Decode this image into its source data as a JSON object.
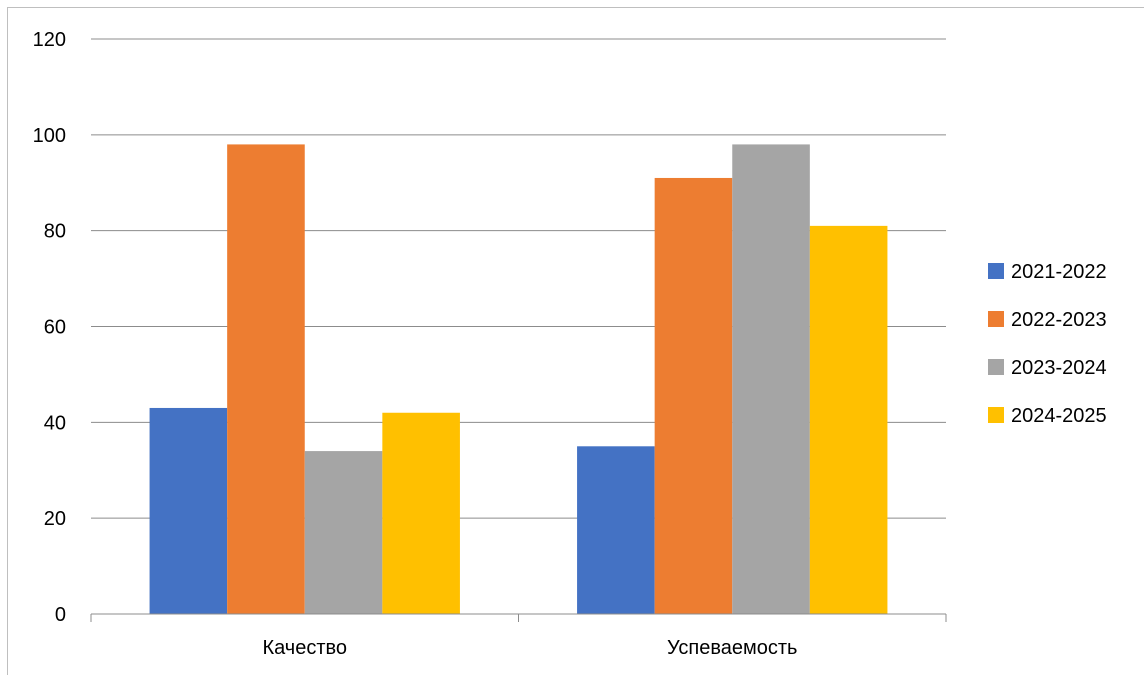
{
  "chart_data": {
    "type": "bar",
    "title": "",
    "xlabel": "",
    "ylabel": "",
    "categories": [
      "Качество",
      "Успеваемость"
    ],
    "series": [
      {
        "name": "2021-2022",
        "color": "#4472c4",
        "values": [
          43,
          35
        ]
      },
      {
        "name": "2022-2023",
        "color": "#ed7d31",
        "values": [
          98,
          91
        ]
      },
      {
        "name": "2023-2024",
        "color": "#a5a5a5",
        "values": [
          34,
          98
        ]
      },
      {
        "name": "2024-2025",
        "color": "#ffc000",
        "values": [
          42,
          81
        ]
      }
    ],
    "ylim": [
      0,
      120
    ],
    "yticks": [
      "0",
      "20",
      "40",
      "60",
      "80",
      "100",
      "120"
    ],
    "grid": true,
    "legend_position": "right"
  }
}
